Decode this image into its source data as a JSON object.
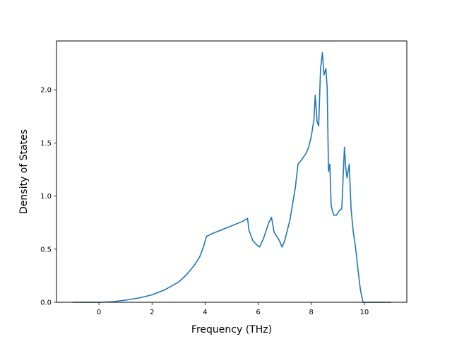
{
  "chart_data": {
    "type": "line",
    "title": "",
    "xlabel": "Frequency (THz)",
    "ylabel": "Density of States",
    "xlim": [
      -1.6,
      11.6
    ],
    "ylim": [
      0.0,
      2.46
    ],
    "xticks": [
      0,
      2,
      4,
      6,
      8,
      10
    ],
    "xtick_labels": [
      "0",
      "2",
      "4",
      "6",
      "8",
      "10"
    ],
    "yticks": [
      0.0,
      0.5,
      1.0,
      1.5,
      2.0
    ],
    "ytick_labels": [
      "0.0",
      "0.5",
      "1.0",
      "1.5",
      "2.0"
    ],
    "grid": false,
    "series": [
      {
        "color": "#1f77b4",
        "x": [
          -1.0,
          0.0,
          0.5,
          1.0,
          1.5,
          2.0,
          2.5,
          3.0,
          3.3,
          3.6,
          3.8,
          3.95,
          4.05,
          4.3,
          4.6,
          5.0,
          5.4,
          5.6,
          5.65,
          5.8,
          5.95,
          6.05,
          6.2,
          6.4,
          6.5,
          6.6,
          6.8,
          6.9,
          7.0,
          7.2,
          7.4,
          7.5,
          7.6,
          7.8,
          7.9,
          8.0,
          8.1,
          8.15,
          8.22,
          8.28,
          8.35,
          8.42,
          8.48,
          8.55,
          8.6,
          8.65,
          8.7,
          8.75,
          8.8,
          8.85,
          8.95,
          9.05,
          9.15,
          9.25,
          9.3,
          9.35,
          9.43,
          9.5,
          9.58,
          9.65,
          9.7,
          9.75,
          9.85,
          9.95,
          10.05,
          10.3,
          11.0
        ],
        "y": [
          0.0,
          0.0,
          0.005,
          0.02,
          0.04,
          0.07,
          0.12,
          0.19,
          0.26,
          0.35,
          0.43,
          0.53,
          0.62,
          0.65,
          0.68,
          0.72,
          0.76,
          0.79,
          0.68,
          0.58,
          0.54,
          0.52,
          0.6,
          0.75,
          0.8,
          0.66,
          0.58,
          0.52,
          0.58,
          0.78,
          1.08,
          1.3,
          1.33,
          1.4,
          1.46,
          1.56,
          1.72,
          1.95,
          1.7,
          1.66,
          2.2,
          2.35,
          2.14,
          2.2,
          2.02,
          1.23,
          1.3,
          0.91,
          0.86,
          0.82,
          0.82,
          0.86,
          0.88,
          1.46,
          1.26,
          1.17,
          1.3,
          0.88,
          0.67,
          0.55,
          0.45,
          0.33,
          0.12,
          0.0,
          0.0,
          0.0,
          0.0
        ]
      }
    ]
  }
}
